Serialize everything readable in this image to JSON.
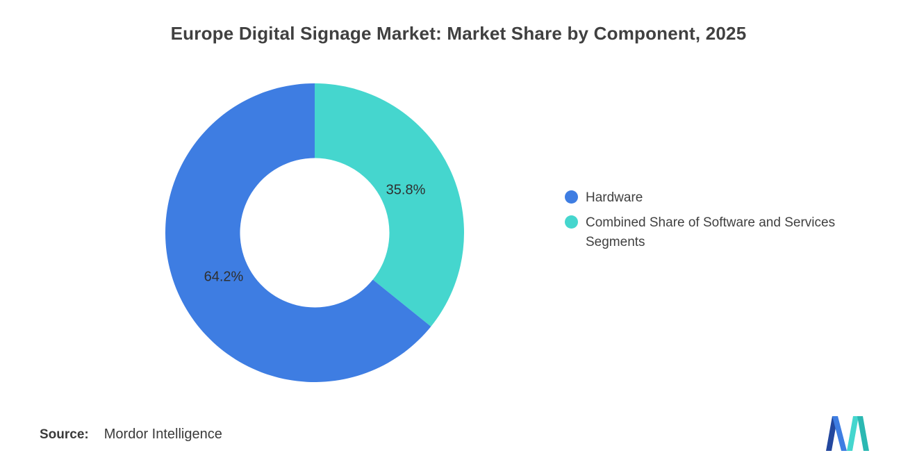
{
  "title": "Europe Digital Signage Market: Market Share by Component, 2025",
  "chart_data": {
    "type": "pie",
    "subtype": "donut",
    "title": "Europe Digital Signage Market: Market Share by Component, 2025",
    "start_angle_deg": 0,
    "direction": "clockwise",
    "inner_radius_ratio": 0.5,
    "legend_position": "right",
    "segments": [
      {
        "label": "Combined Share of Software and Services Segments",
        "value": 35.8,
        "data_label": "35.8%",
        "color": "#45D6CE"
      },
      {
        "label": "Hardware",
        "value": 64.2,
        "data_label": "64.2%",
        "color": "#3E7DE2"
      }
    ]
  },
  "legend": {
    "items": [
      {
        "label": "Hardware",
        "color": "#3E7DE2"
      },
      {
        "label": "Combined Share of Software and Services Segments",
        "color": "#45D6CE"
      }
    ]
  },
  "source": {
    "label": "Source:",
    "value": "Mordor Intelligence"
  },
  "logo": {
    "alt": "Mordor Intelligence logo",
    "colors": [
      "#23479E",
      "#3E7DE2",
      "#45D6CE",
      "#2BB8B2"
    ]
  }
}
